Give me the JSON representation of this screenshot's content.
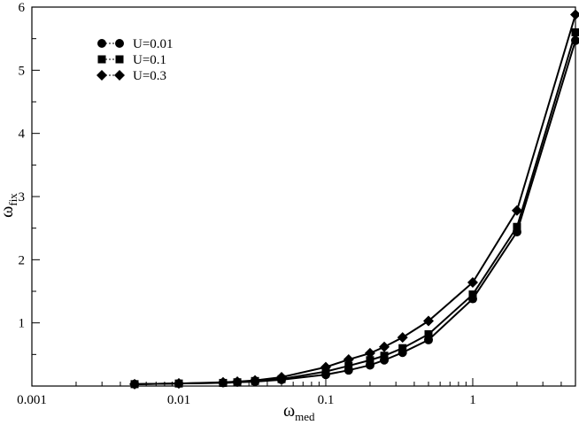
{
  "chart_data": {
    "type": "line",
    "xscale": "log",
    "xlim": [
      0.001,
      5
    ],
    "ylim": [
      0,
      6
    ],
    "grid": false,
    "legend_position": "top-left",
    "xlabel": {
      "main": "ω",
      "sub": "med"
    },
    "ylabel": {
      "main": "ω",
      "sub": "fix"
    },
    "x_ticks": [
      {
        "value": 0.001,
        "label": "0.001"
      },
      {
        "value": 0.01,
        "label": "0.01"
      },
      {
        "value": 0.1,
        "label": "0.1"
      },
      {
        "value": 1,
        "label": "1"
      }
    ],
    "y_ticks": [
      {
        "value": 1,
        "label": "1"
      },
      {
        "value": 2,
        "label": "2"
      },
      {
        "value": 3,
        "label": "3"
      },
      {
        "value": 4,
        "label": "4"
      },
      {
        "value": 5,
        "label": "5"
      },
      {
        "value": 6,
        "label": "6"
      }
    ],
    "series": [
      {
        "name": "U=0.01",
        "marker": "circle",
        "x": [
          0.005,
          0.01,
          0.02,
          0.025,
          0.033,
          0.05,
          0.1,
          0.143,
          0.2,
          0.25,
          0.333,
          0.5,
          1,
          2,
          5
        ],
        "y": [
          0.03,
          0.04,
          0.05,
          0.06,
          0.07,
          0.1,
          0.18,
          0.25,
          0.33,
          0.41,
          0.53,
          0.73,
          1.38,
          2.44,
          5.47
        ]
      },
      {
        "name": "U=0.1",
        "marker": "square",
        "x": [
          0.005,
          0.01,
          0.02,
          0.025,
          0.033,
          0.05,
          0.1,
          0.143,
          0.2,
          0.25,
          0.333,
          0.5,
          1,
          2,
          5
        ],
        "y": [
          0.03,
          0.04,
          0.05,
          0.06,
          0.08,
          0.11,
          0.23,
          0.32,
          0.41,
          0.48,
          0.6,
          0.82,
          1.45,
          2.52,
          5.6
        ]
      },
      {
        "name": "U=0.3",
        "marker": "diamond",
        "x": [
          0.005,
          0.01,
          0.02,
          0.025,
          0.033,
          0.05,
          0.1,
          0.143,
          0.2,
          0.25,
          0.333,
          0.5,
          1,
          2,
          5
        ],
        "y": [
          0.03,
          0.04,
          0.06,
          0.07,
          0.09,
          0.14,
          0.3,
          0.42,
          0.52,
          0.62,
          0.77,
          1.03,
          1.64,
          2.78,
          5.88
        ]
      }
    ]
  }
}
